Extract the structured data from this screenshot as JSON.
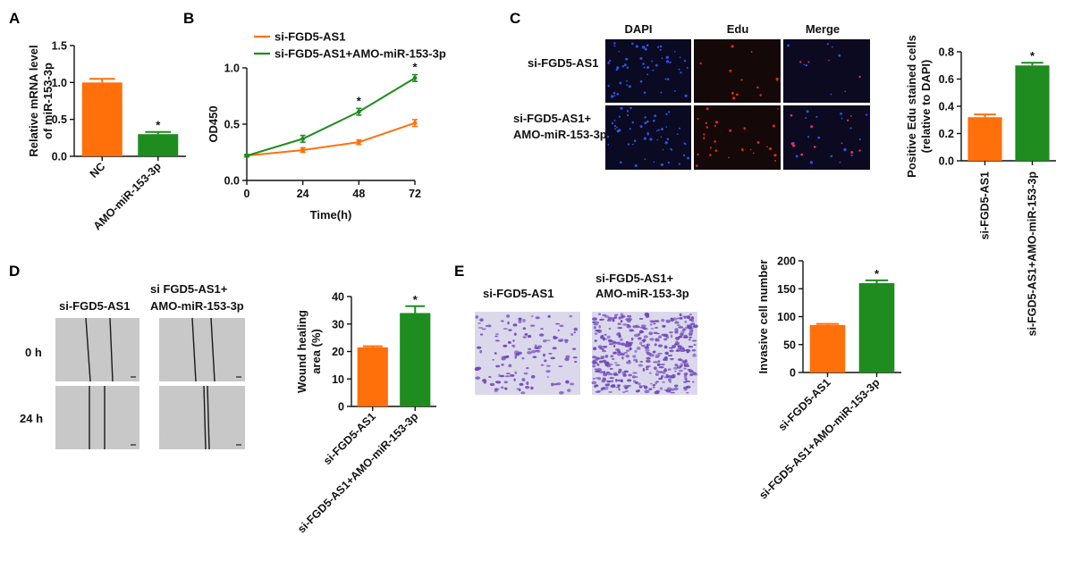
{
  "colors": {
    "orange": "#ff6f0a",
    "green": "#1e8c1e",
    "dapi": "#0a0a22",
    "edu": "#140808",
    "merge": "#0c0a20",
    "wound_bg": "#c9c9c9",
    "invasion_bg": "#dcd8ec",
    "stain": "#6a45b8"
  },
  "panels": {
    "A": {
      "letter": "A"
    },
    "B": {
      "letter": "B"
    },
    "C": {
      "letter": "C",
      "col_headers": [
        "DAPI",
        "Edu",
        "Merge"
      ],
      "row_labels": [
        "si-FGD5-AS1",
        "si-FGD5-AS1+",
        "AMO-miR-153-3p"
      ]
    },
    "D": {
      "letter": "D",
      "col_headers": [
        "si-FGD5-AS1",
        "si FGD5-AS1+",
        "AMO-miR-153-3p"
      ],
      "row_labels": [
        "0 h",
        "24 h"
      ]
    },
    "E": {
      "letter": "E",
      "col_headers": [
        "si-FGD5-AS1",
        "si-FGD5-AS1+",
        "AMO-miR-153-3p"
      ]
    }
  },
  "chart_data": [
    {
      "id": "A",
      "type": "bar",
      "ylabel_lines": [
        "Relative mRNA level",
        "of miR-153-3p"
      ],
      "categories": [
        "NC",
        "AMO-miR-153-3p"
      ],
      "values": [
        1.0,
        0.3
      ],
      "errors": [
        0.05,
        0.03
      ],
      "ylim": [
        0,
        1.5
      ],
      "yticks": [
        "0.0",
        "0.5",
        "1.0",
        "1.5"
      ],
      "significance": [
        "",
        "*"
      ]
    },
    {
      "id": "B",
      "type": "line",
      "xlabel": "Time(h)",
      "ylabel": "OD450",
      "x": [
        0,
        24,
        48,
        72
      ],
      "xticks": [
        "0",
        "24",
        "48",
        "72"
      ],
      "ylim": [
        0,
        1.0
      ],
      "yticks": [
        "0.0",
        "0.5",
        "1.0"
      ],
      "series": [
        {
          "name": "si-FGD5-AS1",
          "values": [
            0.22,
            0.27,
            0.34,
            0.51
          ],
          "errors": [
            0.01,
            0.02,
            0.02,
            0.03
          ]
        },
        {
          "name": "si-FGD5-AS1+AMO-miR-153-3p",
          "values": [
            0.22,
            0.37,
            0.61,
            0.91
          ],
          "errors": [
            0.01,
            0.03,
            0.03,
            0.03
          ]
        }
      ],
      "significance": [
        "",
        "",
        "*",
        "*"
      ],
      "legend": "top-left"
    },
    {
      "id": "C",
      "type": "bar",
      "ylabel_lines": [
        "Positive Edu stained cells",
        "(relative to DAPI)"
      ],
      "categories": [
        "si-FGD5-AS1",
        "si-FGD5-AS1+AMO-miR-153-3p"
      ],
      "values": [
        0.32,
        0.7
      ],
      "errors": [
        0.02,
        0.02
      ],
      "ylim": [
        0,
        0.8
      ],
      "yticks": [
        "0.0",
        "0.2",
        "0.4",
        "0.6",
        "0.8"
      ],
      "significance": [
        "",
        "*"
      ]
    },
    {
      "id": "D",
      "type": "bar",
      "ylabel_lines": [
        "Wound healing",
        "area (%)"
      ],
      "categories": [
        "si-FGD5-AS1",
        "si-FGD5-AS1+AMO-miR-153-3p"
      ],
      "values": [
        21.5,
        34
      ],
      "errors": [
        0.4,
        2.5
      ],
      "ylim": [
        0,
        40
      ],
      "yticks": [
        "0",
        "10",
        "20",
        "30",
        "40"
      ],
      "significance": [
        "",
        "*"
      ]
    },
    {
      "id": "E",
      "type": "bar",
      "ylabel_lines": [
        "Invasive cell number"
      ],
      "categories": [
        "si-FGD5-AS1",
        "si-FGD5-AS1+AMO-miR-153-3p"
      ],
      "values": [
        85,
        160
      ],
      "errors": [
        2,
        5
      ],
      "ylim": [
        0,
        200
      ],
      "yticks": [
        "0",
        "50",
        "100",
        "150",
        "200"
      ],
      "significance": [
        "",
        "*"
      ]
    }
  ]
}
